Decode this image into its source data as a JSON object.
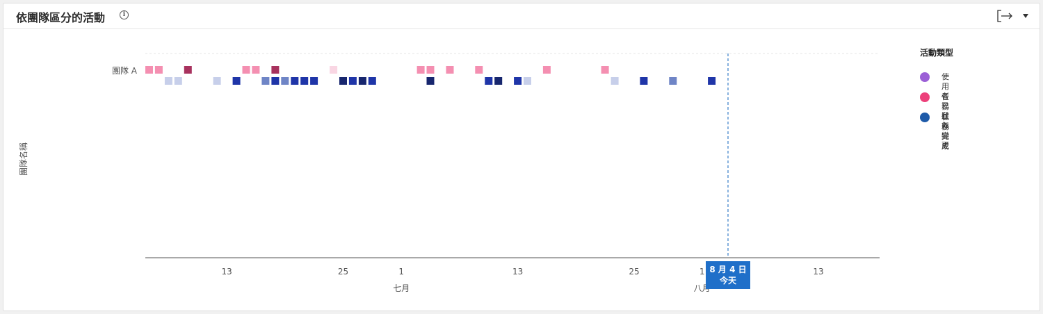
{
  "header": {
    "title": "依團隊區分的活動"
  },
  "icons": {
    "info": "info-icon",
    "export": "export-icon",
    "dropdown": "chevron-down-icon"
  },
  "colors": {
    "user_login": "#9b5fd6",
    "status_change": "#ec407a",
    "task_done": "#1e5aa8",
    "today_line": "#3a7fc8",
    "today_badge": "#1f6fc9"
  },
  "legend": {
    "title": "活動類型",
    "items": [
      {
        "label": "使用者已登入",
        "color": "#9b5fd6"
      },
      {
        "label": "任務狀態變更",
        "color": "#ec407a"
      },
      {
        "label": "任務完成",
        "color": "#1e5aa8"
      }
    ]
  },
  "chart_data": {
    "type": "heatmap",
    "ylabel": "團隊名稱",
    "categories": [
      "團隊 A"
    ],
    "x_range": [
      "2025-06-05",
      "2025-08-22"
    ],
    "x_ticks": [
      {
        "date": "2025-06-13",
        "label": "13"
      },
      {
        "date": "2025-06-25",
        "label": "25"
      },
      {
        "date": "2025-07-01",
        "label": "1"
      },
      {
        "date": "2025-07-13",
        "label": "13"
      },
      {
        "date": "2025-07-25",
        "label": "25"
      },
      {
        "date": "2025-08-01",
        "label": "1"
      },
      {
        "date": "2025-08-13",
        "label": "13"
      }
    ],
    "months": [
      {
        "date": "2025-07-01",
        "label": "七月"
      },
      {
        "date": "2025-08-01",
        "label": "八月"
      }
    ],
    "today": {
      "date": "2025-08-04",
      "label": "8 月 4 日",
      "sub": "今天"
    },
    "series": [
      {
        "name": "任務狀態變更",
        "row": 0,
        "points": [
          {
            "date": "2025-06-05",
            "intensity": 2
          },
          {
            "date": "2025-06-06",
            "intensity": 2
          },
          {
            "date": "2025-06-09",
            "intensity": 4
          },
          {
            "date": "2025-06-15",
            "intensity": 2
          },
          {
            "date": "2025-06-16",
            "intensity": 2
          },
          {
            "date": "2025-06-18",
            "intensity": 4
          },
          {
            "date": "2025-06-24",
            "intensity": 1
          },
          {
            "date": "2025-07-03",
            "intensity": 2
          },
          {
            "date": "2025-07-04",
            "intensity": 2
          },
          {
            "date": "2025-07-06",
            "intensity": 2
          },
          {
            "date": "2025-07-09",
            "intensity": 2
          },
          {
            "date": "2025-07-16",
            "intensity": 2
          },
          {
            "date": "2025-07-22",
            "intensity": 2
          }
        ]
      },
      {
        "name": "任務完成",
        "row": 1,
        "points": [
          {
            "date": "2025-06-07",
            "intensity": 1
          },
          {
            "date": "2025-06-08",
            "intensity": 1
          },
          {
            "date": "2025-06-12",
            "intensity": 1
          },
          {
            "date": "2025-06-14",
            "intensity": 3
          },
          {
            "date": "2025-06-17",
            "intensity": 2
          },
          {
            "date": "2025-06-18",
            "intensity": 3
          },
          {
            "date": "2025-06-19",
            "intensity": 2
          },
          {
            "date": "2025-06-20",
            "intensity": 3
          },
          {
            "date": "2025-06-21",
            "intensity": 3
          },
          {
            "date": "2025-06-22",
            "intensity": 3
          },
          {
            "date": "2025-06-25",
            "intensity": 4
          },
          {
            "date": "2025-06-26",
            "intensity": 3
          },
          {
            "date": "2025-06-27",
            "intensity": 4
          },
          {
            "date": "2025-06-28",
            "intensity": 3
          },
          {
            "date": "2025-07-04",
            "intensity": 4
          },
          {
            "date": "2025-07-10",
            "intensity": 3
          },
          {
            "date": "2025-07-11",
            "intensity": 4
          },
          {
            "date": "2025-07-13",
            "intensity": 3
          },
          {
            "date": "2025-07-14",
            "intensity": 1
          },
          {
            "date": "2025-07-23",
            "intensity": 1
          },
          {
            "date": "2025-07-26",
            "intensity": 3
          },
          {
            "date": "2025-07-29",
            "intensity": 2
          },
          {
            "date": "2025-08-02",
            "intensity": 3
          }
        ]
      }
    ]
  }
}
